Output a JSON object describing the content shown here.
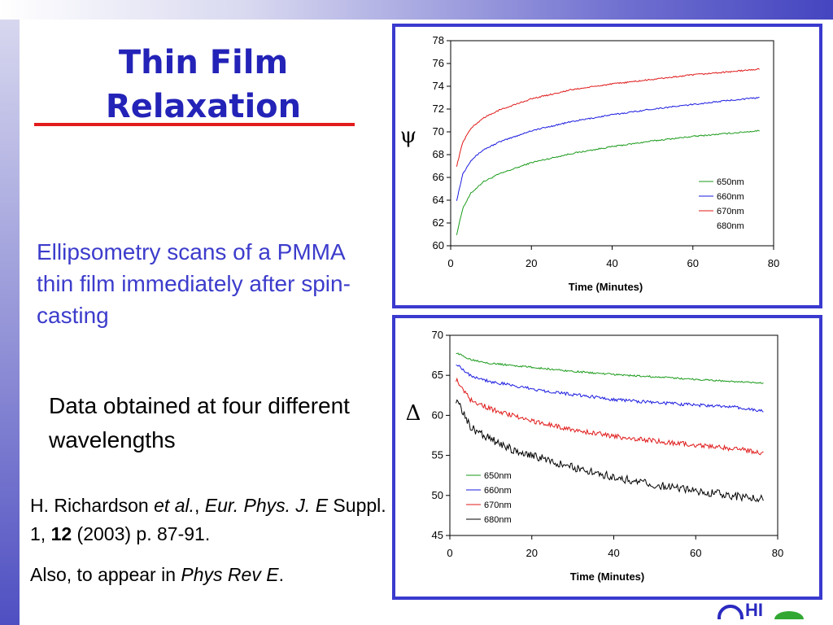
{
  "slide": {
    "title_line1": "Thin Film",
    "title_line2": "Relaxation",
    "description": "Ellipsometry scans of a PMMA thin film immediately after spin-casting",
    "wavelength_note": "Data obtained at four different wavelengths",
    "citation": {
      "authors": "H. Richardson ",
      "etal": "et al.",
      "sep1": ", ",
      "journal": "Eur. Phys. J. E",
      "suppl": "  Suppl. 1, ",
      "volume": "12",
      "rest": " (2003) p. 87-91."
    },
    "also": {
      "prefix": "Also, to appear in ",
      "journal": "Phys Rev E",
      "suffix": "."
    }
  },
  "colors": {
    "accent": "#2323b8",
    "rule": "#e31b1b",
    "frame": "#3a3acf"
  },
  "chart_data": [
    {
      "type": "line",
      "symbol": "ψ",
      "xlabel": "Time (Minutes)",
      "ylabel": "",
      "xlim": [
        0,
        80
      ],
      "ylim": [
        60,
        78
      ],
      "xticks": [
        0,
        20,
        40,
        60,
        80
      ],
      "yticks": [
        60,
        62,
        64,
        66,
        68,
        70,
        72,
        74,
        76,
        78
      ],
      "legend_position": "bottom-right",
      "series": [
        {
          "name": "650nm",
          "color": "#1a9a1a",
          "x": [
            1.5,
            3,
            5,
            8,
            12,
            20,
            30,
            40,
            50,
            60,
            70,
            76.5
          ],
          "values": [
            61.0,
            63.3,
            64.6,
            65.6,
            66.3,
            67.3,
            68.1,
            68.7,
            69.2,
            69.6,
            69.9,
            70.1
          ]
        },
        {
          "name": "660nm",
          "color": "#1a1ae0",
          "x": [
            1.5,
            3,
            5,
            8,
            12,
            20,
            30,
            40,
            50,
            60,
            70,
            76.5
          ],
          "values": [
            64.0,
            66.3,
            67.5,
            68.4,
            69.1,
            70.1,
            70.9,
            71.5,
            72.0,
            72.4,
            72.8,
            73.0
          ]
        },
        {
          "name": "670nm",
          "color": "#e01a1a",
          "x": [
            1.5,
            3,
            5,
            8,
            12,
            20,
            30,
            40,
            50,
            60,
            70,
            76.5
          ],
          "values": [
            67.0,
            69.1,
            70.3,
            71.2,
            71.9,
            72.9,
            73.7,
            74.2,
            74.6,
            75.0,
            75.3,
            75.5
          ]
        },
        {
          "name": "680nm",
          "color": "#000000",
          "x": [],
          "values": []
        }
      ]
    },
    {
      "type": "line",
      "symbol": "Δ",
      "xlabel": "Time (Minutes)",
      "ylabel": "",
      "xlim": [
        0,
        80
      ],
      "ylim": [
        45,
        70
      ],
      "xticks": [
        0,
        20,
        40,
        60,
        80
      ],
      "yticks": [
        45,
        50,
        55,
        60,
        65,
        70
      ],
      "legend_position": "bottom-left",
      "series": [
        {
          "name": "650nm",
          "color": "#1a9a1a",
          "x": [
            1.5,
            5,
            10,
            20,
            30,
            40,
            50,
            60,
            70,
            76.5
          ],
          "values": [
            67.8,
            67.0,
            66.5,
            66.0,
            65.5,
            65.1,
            64.8,
            64.5,
            64.2,
            64.0
          ]
        },
        {
          "name": "660nm",
          "color": "#1a1ae0",
          "x": [
            1.5,
            5,
            10,
            20,
            30,
            40,
            50,
            60,
            70,
            76.5
          ],
          "values": [
            66.5,
            65.0,
            64.2,
            63.3,
            62.6,
            62.0,
            61.6,
            61.3,
            61.0,
            60.5
          ]
        },
        {
          "name": "670nm",
          "color": "#e01a1a",
          "x": [
            1.5,
            5,
            10,
            20,
            30,
            40,
            50,
            60,
            70,
            76.5
          ],
          "values": [
            64.5,
            62.0,
            60.8,
            59.3,
            58.2,
            57.4,
            56.8,
            56.3,
            55.8,
            55.3
          ]
        },
        {
          "name": "680nm",
          "color": "#000000",
          "x": [
            1.5,
            5,
            10,
            15,
            20,
            30,
            40,
            50,
            60,
            70,
            76.5
          ],
          "values": [
            62.0,
            58.5,
            57.0,
            55.8,
            55.0,
            53.5,
            52.3,
            51.3,
            50.6,
            49.9,
            49.5
          ]
        }
      ]
    }
  ]
}
